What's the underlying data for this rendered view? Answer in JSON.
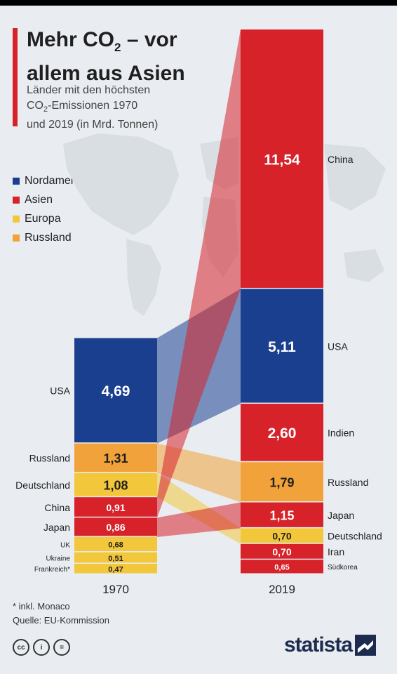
{
  "header": {
    "title_line1_pre": "Mehr CO",
    "title_line1_sub": "2",
    "title_line1_post": " – vor",
    "title_line2": "allem aus Asien",
    "subtitle_line1": "Länder mit den höchsten",
    "subtitle_line2_pre": "CO",
    "subtitle_line2_sub": "2",
    "subtitle_line2_post": "-Emissionen 1970",
    "subtitle_line3": "und 2019 (in Mrd. Tonnen)"
  },
  "legend": [
    {
      "label": "Nordamerika",
      "color": "#1b3f8f"
    },
    {
      "label": "Asien",
      "color": "#d7222a"
    },
    {
      "label": "Europa",
      "color": "#f2c73c"
    },
    {
      "label": "Russland",
      "color": "#f2a23a"
    }
  ],
  "chart_data": {
    "type": "bar",
    "stacked": true,
    "categories": [
      "1970",
      "2019"
    ],
    "bars": [
      {
        "year": "1970",
        "segments": [
          {
            "country": "USA",
            "value": 4.69,
            "label": "4,69",
            "region": "Nordamerika"
          },
          {
            "country": "Russland",
            "value": 1.31,
            "label": "1,31",
            "region": "Russland"
          },
          {
            "country": "Deutschland",
            "value": 1.08,
            "label": "1,08",
            "region": "Europa"
          },
          {
            "country": "China",
            "value": 0.91,
            "label": "0,91",
            "region": "Asien"
          },
          {
            "country": "Japan",
            "value": 0.86,
            "label": "0,86",
            "region": "Asien"
          },
          {
            "country": "UK",
            "value": 0.68,
            "label": "0,68",
            "region": "Europa"
          },
          {
            "country": "Ukraine",
            "value": 0.51,
            "label": "0,51",
            "region": "Europa"
          },
          {
            "country": "Frankreich*",
            "value": 0.47,
            "label": "0,47",
            "region": "Europa"
          }
        ]
      },
      {
        "year": "2019",
        "segments": [
          {
            "country": "China",
            "value": 11.54,
            "label": "11,54",
            "region": "Asien"
          },
          {
            "country": "USA",
            "value": 5.11,
            "label": "5,11",
            "region": "Nordamerika"
          },
          {
            "country": "Indien",
            "value": 2.6,
            "label": "2,60",
            "region": "Asien"
          },
          {
            "country": "Russland",
            "value": 1.79,
            "label": "1,79",
            "region": "Russland"
          },
          {
            "country": "Japan",
            "value": 1.15,
            "label": "1,15",
            "region": "Asien"
          },
          {
            "country": "Deutschland",
            "value": 0.7,
            "label": "0,70",
            "region": "Europa"
          },
          {
            "country": "Iran",
            "value": 0.7,
            "label": "0,70",
            "region": "Asien"
          },
          {
            "country": "Südkorea",
            "value": 0.65,
            "label": "0,65",
            "region": "Asien"
          }
        ]
      }
    ],
    "flows": [
      {
        "country": "USA",
        "region": "Nordamerika"
      },
      {
        "country": "Russland",
        "region": "Russland"
      },
      {
        "country": "Deutschland",
        "region": "Europa"
      },
      {
        "country": "China",
        "region": "Asien"
      },
      {
        "country": "Japan",
        "region": "Asien"
      }
    ]
  },
  "footer": {
    "footnote": "* inkl. Monaco",
    "source": "Quelle: EU-Kommission",
    "cc_icons": [
      "cc",
      "i",
      "="
    ],
    "brand": "statista"
  }
}
